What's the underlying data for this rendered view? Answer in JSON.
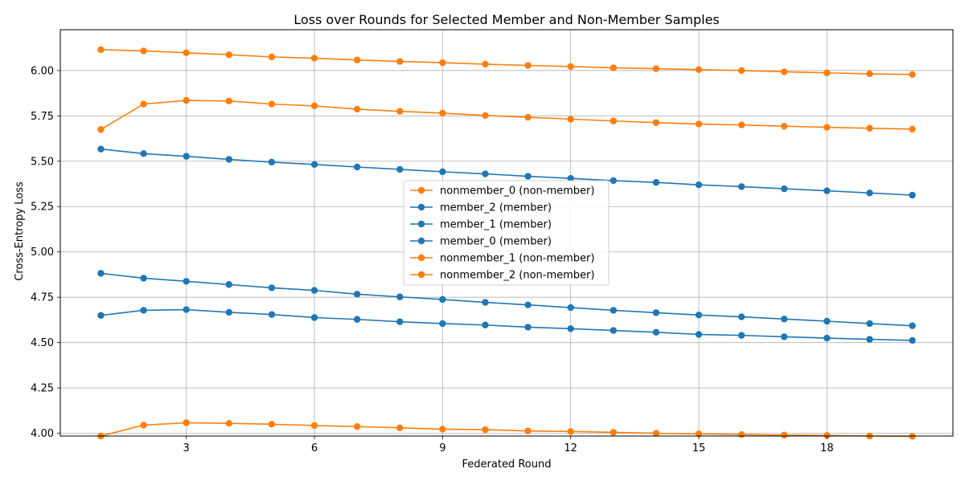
{
  "chart_data": {
    "type": "line",
    "title": "Loss over Rounds for Selected Member and Non-Member Samples",
    "xlabel": "Federated Round",
    "ylabel": "Cross-Entropy Loss",
    "xlim": [
      0.05,
      20.95
    ],
    "ylim": [
      3.985,
      6.225
    ],
    "xticks": [
      3,
      6,
      9,
      12,
      15,
      18
    ],
    "yticks": [
      4.0,
      4.25,
      4.5,
      4.75,
      5.0,
      5.25,
      5.5,
      5.75,
      6.0
    ],
    "ytick_labels": [
      "4.00",
      "4.25",
      "4.50",
      "4.75",
      "5.00",
      "5.25",
      "5.50",
      "5.75",
      "6.00"
    ],
    "grid": true,
    "legend_position": "center",
    "x": [
      1,
      2,
      3,
      4,
      5,
      6,
      7,
      8,
      9,
      10,
      11,
      12,
      13,
      14,
      15,
      16,
      17,
      18,
      19,
      20
    ],
    "colors": {
      "member": "#1f77b4",
      "nonmember": "#ff7f0e"
    },
    "series": [
      {
        "name": "nonmember_0 (non-member)",
        "group": "nonmember",
        "values": [
          5.675,
          5.815,
          5.835,
          5.832,
          5.815,
          5.805,
          5.787,
          5.775,
          5.765,
          5.752,
          5.742,
          5.732,
          5.722,
          5.713,
          5.705,
          5.7,
          5.693,
          5.687,
          5.682,
          5.677
        ]
      },
      {
        "name": "member_2 (member)",
        "group": "member",
        "values": [
          4.882,
          4.855,
          4.838,
          4.82,
          4.802,
          4.788,
          4.767,
          4.752,
          4.738,
          4.722,
          4.708,
          4.693,
          4.678,
          4.665,
          4.652,
          4.642,
          4.63,
          4.618,
          4.605,
          4.593
        ]
      },
      {
        "name": "member_1 (member)",
        "group": "member",
        "values": [
          4.65,
          4.678,
          4.682,
          4.667,
          4.655,
          4.638,
          4.628,
          4.615,
          4.605,
          4.597,
          4.585,
          4.577,
          4.567,
          4.557,
          4.545,
          4.54,
          4.532,
          4.525,
          4.518,
          4.512
        ]
      },
      {
        "name": "member_0 (member)",
        "group": "member",
        "values": [
          5.567,
          5.542,
          5.527,
          5.51,
          5.495,
          5.482,
          5.468,
          5.455,
          5.442,
          5.43,
          5.417,
          5.405,
          5.393,
          5.383,
          5.37,
          5.36,
          5.348,
          5.337,
          5.325,
          5.313
        ]
      },
      {
        "name": "nonmember_1 (non-member)",
        "group": "nonmember",
        "values": [
          6.115,
          6.108,
          6.098,
          6.087,
          6.075,
          6.068,
          6.058,
          6.05,
          6.043,
          6.035,
          6.028,
          6.022,
          6.015,
          6.01,
          6.005,
          6.0,
          5.993,
          5.987,
          5.982,
          5.978
        ]
      },
      {
        "name": "nonmember_2 (non-member)",
        "group": "nonmember",
        "values": [
          3.985,
          4.045,
          4.058,
          4.055,
          4.05,
          4.043,
          4.037,
          4.03,
          4.023,
          4.02,
          4.013,
          4.01,
          4.005,
          4.0,
          3.997,
          3.993,
          3.99,
          3.988,
          3.985,
          3.983
        ]
      }
    ]
  }
}
